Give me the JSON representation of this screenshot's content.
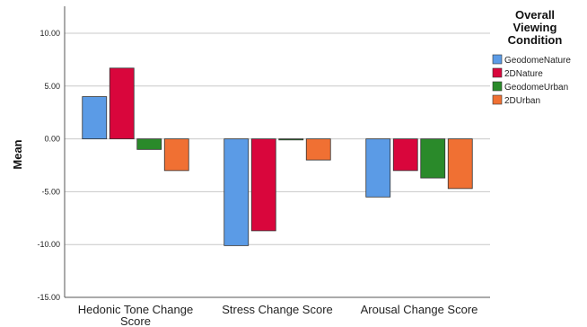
{
  "chart_data": {
    "type": "bar",
    "title": "",
    "xlabel": "",
    "ylabel": "Mean",
    "ylim": [
      -15,
      10
    ],
    "yticks": [
      "10.00",
      "5.00",
      "0.00",
      "-5.00",
      "-10.00",
      "-15.00"
    ],
    "ytick_values": [
      10,
      5,
      0,
      -5,
      -10,
      -15
    ],
    "grid": true,
    "categories": [
      "Hedonic Tone Change Score",
      "Stress Change Score",
      "Arousal Change Score"
    ],
    "legend_title": "Overall Viewing Condition",
    "legend_placement": "top-right",
    "series": [
      {
        "name": "GeodomeNature",
        "color": "#5b9be6",
        "values": [
          4.0,
          -10.1,
          -5.5
        ]
      },
      {
        "name": "2DNature",
        "color": "#d9063c",
        "values": [
          6.7,
          -8.7,
          -3.0
        ]
      },
      {
        "name": "GeodomeUrban",
        "color": "#2a8a2a",
        "values": [
          -1.0,
          -0.1,
          -3.7
        ]
      },
      {
        "name": "2DUrban",
        "color": "#f07033",
        "values": [
          -3.0,
          -2.0,
          -4.7
        ]
      }
    ]
  }
}
